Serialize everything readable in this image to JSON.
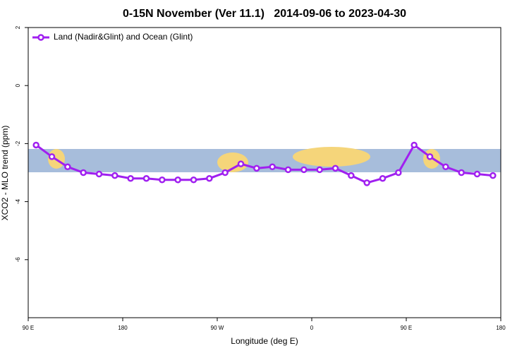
{
  "chart_data": {
    "type": "line",
    "title": "0-15N November (Ver 11.1)   2014-09-06 to 2023-04-30",
    "x_label": "Longitude (deg E)",
    "y_label": "XCO2 - MLO trend (ppm)",
    "x": [
      97.5,
      112.5,
      127.5,
      142.5,
      157.5,
      172.5,
      187.5,
      202.5,
      217.5,
      232.5,
      247.5,
      262.5,
      277.5,
      292.5,
      307.5,
      322.5,
      337.5,
      352.5,
      367.5,
      382.5,
      397.5,
      412.5,
      427.5,
      442.5,
      457.5,
      472.5,
      487.5,
      502.5,
      517.5,
      532.5
    ],
    "series": [
      {
        "name": "Land (Nadir&Glint) and Ocean (Glint)",
        "color": "#a020f0",
        "values": [
          -2.05,
          -2.45,
          -2.8,
          -3.0,
          -3.05,
          -3.1,
          -3.2,
          -3.2,
          -3.25,
          -3.25,
          -3.25,
          -3.2,
          -3.0,
          -2.7,
          -2.85,
          -2.8,
          -2.9,
          -2.9,
          -2.9,
          -2.85,
          -3.1,
          -3.35,
          -3.2,
          -3.0,
          -2.05,
          -2.45,
          -2.8,
          -3.0,
          -3.05,
          -3.1
        ]
      }
    ],
    "xlim": [
      90,
      540
    ],
    "xticks": [
      {
        "value": 90,
        "label": "90 E"
      },
      {
        "value": 180,
        "label": "180"
      },
      {
        "value": 270,
        "label": "90 W"
      },
      {
        "value": 360,
        "label": "0"
      },
      {
        "value": 450,
        "label": "90 E"
      },
      {
        "value": 540,
        "label": "180"
      }
    ],
    "ylim": [
      -8,
      2
    ],
    "yticks": [
      2,
      0,
      -2,
      -4,
      -6
    ],
    "legend": "top-left"
  }
}
